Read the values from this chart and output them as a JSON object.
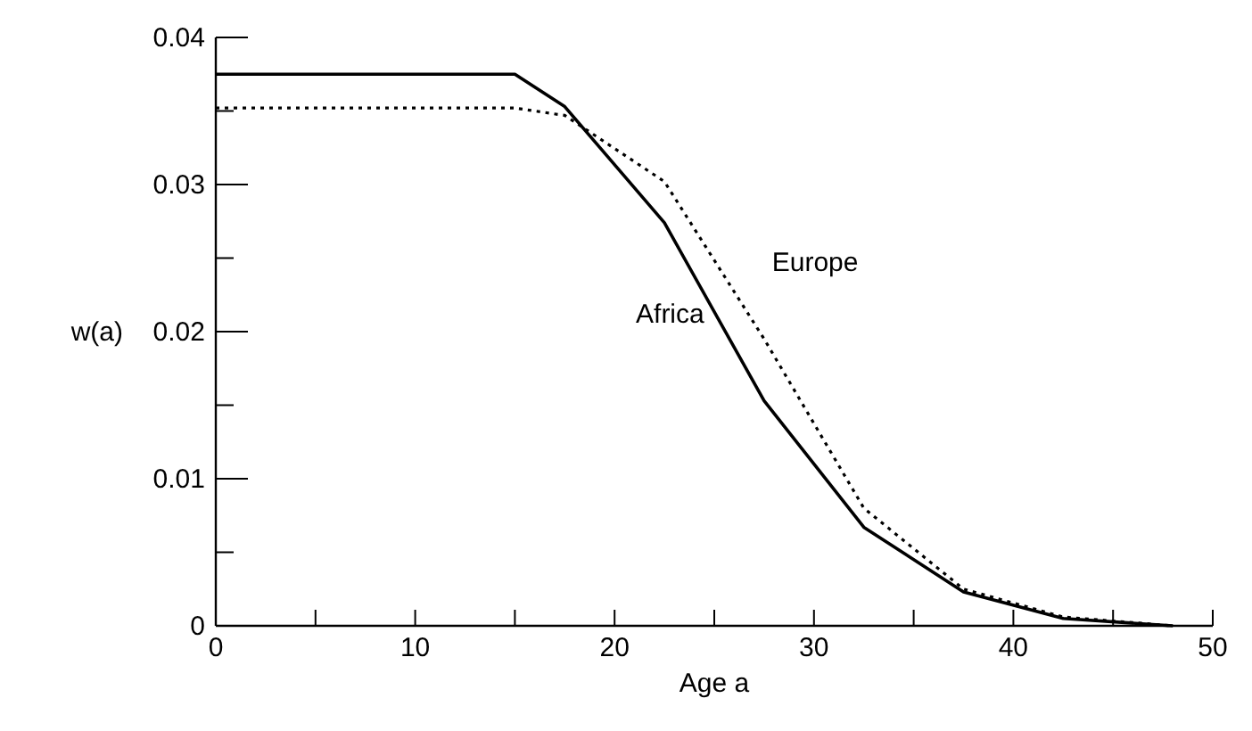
{
  "chart_data": {
    "type": "line",
    "xlabel": "Age a",
    "ylabel": "w(a)",
    "x": [
      0,
      15,
      17.5,
      22.5,
      27.5,
      32.5,
      37.5,
      42.5,
      48
    ],
    "series": [
      {
        "name": "Africa",
        "color": "#000000",
        "line_style": "solid",
        "values": [
          0.0375,
          0.0375,
          0.0353,
          0.0274,
          0.0153,
          0.0067,
          0.0023,
          0.0005,
          0
        ]
      },
      {
        "name": "Europe",
        "color": "#000000",
        "line_style": "dotted",
        "values": [
          0.0352,
          0.0352,
          0.0347,
          0.0302,
          0.0195,
          0.008,
          0.0025,
          0.0006,
          0
        ]
      }
    ],
    "xlim": [
      0,
      50
    ],
    "ylim": [
      0,
      0.04
    ],
    "xticks": [
      0,
      {
        "value": 5,
        "label": null
      },
      10,
      {
        "value": 15,
        "label": null
      },
      20,
      {
        "value": 25,
        "label": null
      },
      30,
      {
        "value": 35,
        "label": null
      },
      40,
      {
        "value": 45,
        "label": null
      },
      50
    ],
    "yticks": [
      0,
      {
        "value": 0.005,
        "label": null
      },
      0.01,
      {
        "value": 0.015,
        "label": null
      },
      0.02,
      {
        "value": 0.025,
        "label": null
      },
      0.03,
      {
        "value": 0.035,
        "label": null
      },
      0.04
    ],
    "marker": "none"
  }
}
